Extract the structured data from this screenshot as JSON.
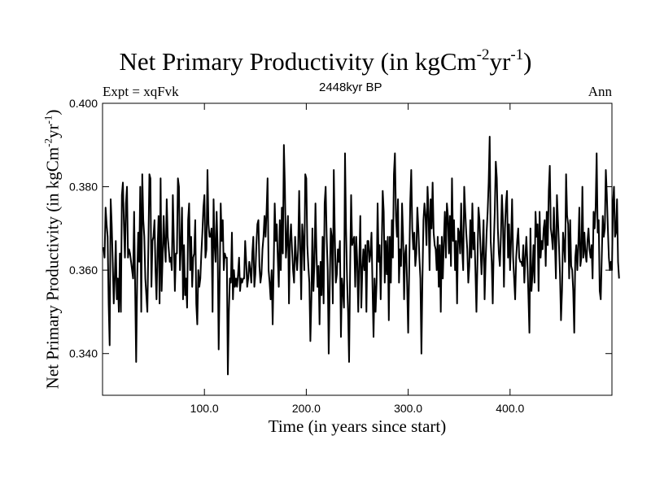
{
  "chart_data": {
    "type": "line",
    "title_main": "Net Primary Productivity (in kgCm",
    "title_exp1": "-2",
    "title_mid": "yr",
    "title_exp2": "-1",
    "title_end": ")",
    "subtitle_left": "Expt = xqFvk",
    "subtitle_center": "2448kyr BP",
    "subtitle_right": "Ann",
    "xlabel": "Time (in years since start)",
    "ylabel_main": "Net Primary Productivity (in kgCm",
    "ylabel_exp1": "-2",
    "ylabel_mid": "yr",
    "ylabel_exp2": "-1",
    "ylabel_end": ")",
    "xlim": [
      0,
      500
    ],
    "ylim": [
      0.33,
      0.4
    ],
    "x_ticks": [
      100,
      200,
      300,
      400
    ],
    "x_tick_labels": [
      "100.0",
      "200.0",
      "300.0",
      "400.0"
    ],
    "y_ticks": [
      0.34,
      0.36,
      0.38,
      0.4
    ],
    "y_tick_labels": [
      "0.340",
      "0.360",
      "0.380",
      "0.400"
    ],
    "x_start": 1,
    "x_step": 1,
    "values": [
      0.3655,
      0.363,
      0.375,
      0.371,
      0.368,
      0.352,
      0.342,
      0.377,
      0.371,
      0.362,
      0.352,
      0.358,
      0.367,
      0.353,
      0.358,
      0.35,
      0.364,
      0.35,
      0.378,
      0.381,
      0.371,
      0.363,
      0.376,
      0.38,
      0.363,
      0.365,
      0.364,
      0.362,
      0.36,
      0.358,
      0.374,
      0.356,
      0.338,
      0.358,
      0.369,
      0.362,
      0.38,
      0.35,
      0.383,
      0.372,
      0.368,
      0.358,
      0.354,
      0.35,
      0.366,
      0.383,
      0.382,
      0.356,
      0.367,
      0.368,
      0.372,
      0.36,
      0.353,
      0.365,
      0.373,
      0.352,
      0.382,
      0.355,
      0.363,
      0.373,
      0.366,
      0.362,
      0.377,
      0.368,
      0.365,
      0.362,
      0.363,
      0.36,
      0.378,
      0.367,
      0.355,
      0.364,
      0.364,
      0.382,
      0.38,
      0.36,
      0.366,
      0.375,
      0.353,
      0.366,
      0.354,
      0.358,
      0.351,
      0.372,
      0.376,
      0.36,
      0.368,
      0.356,
      0.363,
      0.364,
      0.372,
      0.352,
      0.347,
      0.36,
      0.356,
      0.358,
      0.364,
      0.369,
      0.375,
      0.378,
      0.363,
      0.365,
      0.384,
      0.371,
      0.368,
      0.368,
      0.37,
      0.35,
      0.377,
      0.366,
      0.362,
      0.374,
      0.365,
      0.341,
      0.358,
      0.376,
      0.367,
      0.372,
      0.36,
      0.364,
      0.363,
      0.363,
      0.335,
      0.35,
      0.358,
      0.357,
      0.369,
      0.353,
      0.36,
      0.356,
      0.358,
      0.356,
      0.359,
      0.363,
      0.355,
      0.358,
      0.357,
      0.358,
      0.358,
      0.367,
      0.362,
      0.356,
      0.358,
      0.362,
      0.36,
      0.357,
      0.364,
      0.368,
      0.356,
      0.359,
      0.366,
      0.371,
      0.372,
      0.361,
      0.357,
      0.359,
      0.365,
      0.368,
      0.373,
      0.368,
      0.374,
      0.382,
      0.36,
      0.357,
      0.353,
      0.36,
      0.347,
      0.361,
      0.376,
      0.367,
      0.371,
      0.363,
      0.356,
      0.372,
      0.36,
      0.375,
      0.364,
      0.39,
      0.38,
      0.363,
      0.367,
      0.373,
      0.352,
      0.367,
      0.371,
      0.365,
      0.36,
      0.357,
      0.368,
      0.363,
      0.36,
      0.365,
      0.379,
      0.366,
      0.353,
      0.371,
      0.367,
      0.36,
      0.383,
      0.382,
      0.366,
      0.361,
      0.357,
      0.343,
      0.353,
      0.37,
      0.355,
      0.362,
      0.376,
      0.364,
      0.356,
      0.361,
      0.347,
      0.362,
      0.354,
      0.368,
      0.352,
      0.376,
      0.38,
      0.368,
      0.36,
      0.34,
      0.356,
      0.37,
      0.368,
      0.352,
      0.384,
      0.368,
      0.357,
      0.359,
      0.365,
      0.362,
      0.367,
      0.344,
      0.358,
      0.355,
      0.351,
      0.388,
      0.37,
      0.358,
      0.35,
      0.338,
      0.36,
      0.378,
      0.366,
      0.367,
      0.368,
      0.356,
      0.368,
      0.362,
      0.35,
      0.362,
      0.373,
      0.351,
      0.36,
      0.365,
      0.36,
      0.366,
      0.35,
      0.367,
      0.367,
      0.362,
      0.364,
      0.369,
      0.356,
      0.344,
      0.358,
      0.35,
      0.357,
      0.376,
      0.362,
      0.366,
      0.353,
      0.365,
      0.379,
      0.374,
      0.357,
      0.367,
      0.359,
      0.368,
      0.348,
      0.368,
      0.357,
      0.372,
      0.363,
      0.383,
      0.388,
      0.373,
      0.368,
      0.377,
      0.357,
      0.365,
      0.361,
      0.376,
      0.368,
      0.353,
      0.364,
      0.366,
      0.356,
      0.345,
      0.36,
      0.376,
      0.384,
      0.37,
      0.365,
      0.369,
      0.361,
      0.364,
      0.375,
      0.37,
      0.363,
      0.358,
      0.34,
      0.358,
      0.372,
      0.376,
      0.373,
      0.366,
      0.38,
      0.374,
      0.36,
      0.377,
      0.37,
      0.381,
      0.369,
      0.366,
      0.365,
      0.36,
      0.368,
      0.356,
      0.366,
      0.35,
      0.368,
      0.358,
      0.367,
      0.374,
      0.363,
      0.376,
      0.373,
      0.364,
      0.373,
      0.361,
      0.382,
      0.367,
      0.372,
      0.36,
      0.367,
      0.352,
      0.37,
      0.369,
      0.364,
      0.376,
      0.365,
      0.36,
      0.38,
      0.374,
      0.369,
      0.365,
      0.357,
      0.361,
      0.372,
      0.363,
      0.376,
      0.365,
      0.369,
      0.36,
      0.35,
      0.362,
      0.375,
      0.372,
      0.365,
      0.359,
      0.365,
      0.372,
      0.353,
      0.362,
      0.369,
      0.374,
      0.381,
      0.392,
      0.367,
      0.362,
      0.352,
      0.366,
      0.374,
      0.386,
      0.382,
      0.37,
      0.364,
      0.361,
      0.368,
      0.378,
      0.372,
      0.356,
      0.37,
      0.376,
      0.379,
      0.363,
      0.371,
      0.36,
      0.367,
      0.377,
      0.363,
      0.358,
      0.353,
      0.363,
      0.367,
      0.37,
      0.363,
      0.362,
      0.362,
      0.361,
      0.366,
      0.357,
      0.363,
      0.368,
      0.362,
      0.354,
      0.345,
      0.37,
      0.355,
      0.359,
      0.366,
      0.357,
      0.374,
      0.368,
      0.371,
      0.355,
      0.374,
      0.363,
      0.367,
      0.365,
      0.37,
      0.372,
      0.361,
      0.374,
      0.366,
      0.379,
      0.385,
      0.37,
      0.368,
      0.365,
      0.375,
      0.367,
      0.358,
      0.378,
      0.372,
      0.366,
      0.359,
      0.348,
      0.355,
      0.369,
      0.366,
      0.362,
      0.383,
      0.373,
      0.371,
      0.358,
      0.372,
      0.361,
      0.36,
      0.355,
      0.345,
      0.363,
      0.366,
      0.36,
      0.366,
      0.375,
      0.361,
      0.363,
      0.38,
      0.363,
      0.369,
      0.364,
      0.362,
      0.367,
      0.37,
      0.365,
      0.363,
      0.366,
      0.358,
      0.374,
      0.37,
      0.375,
      0.388,
      0.369,
      0.372,
      0.355,
      0.353,
      0.363,
      0.373,
      0.368,
      0.37,
      0.384,
      0.378,
      0.37,
      0.363,
      0.36,
      0.362,
      0.36,
      0.376,
      0.38,
      0.368,
      0.369,
      0.377,
      0.362,
      0.358
    ]
  }
}
